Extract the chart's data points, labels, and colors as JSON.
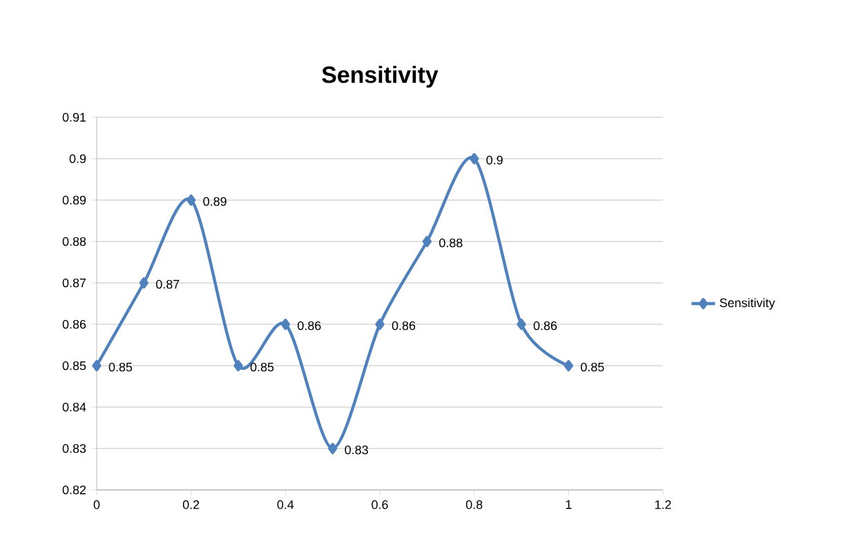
{
  "chart_data": {
    "type": "line",
    "title": "Sensitivity",
    "x": [
      0,
      0.1,
      0.2,
      0.3,
      0.4,
      0.5,
      0.6,
      0.7,
      0.8,
      0.9,
      1
    ],
    "series": [
      {
        "name": "Sensitivity",
        "color": "#4f81bd",
        "values": [
          0.85,
          0.87,
          0.89,
          0.85,
          0.86,
          0.83,
          0.86,
          0.88,
          0.9,
          0.86,
          0.85
        ]
      }
    ],
    "xlim": [
      0,
      1.2
    ],
    "xticks": [
      0,
      0.2,
      0.4,
      0.6,
      0.8,
      1,
      1.2
    ],
    "ylim": [
      0.82,
      0.91
    ],
    "yticks": [
      0.82,
      0.83,
      0.84,
      0.85,
      0.86,
      0.87,
      0.88,
      0.89,
      0.9,
      0.91
    ],
    "grid": "y",
    "legend": "right",
    "marker": "diamond",
    "line_style": "solid",
    "data_labels": true
  }
}
